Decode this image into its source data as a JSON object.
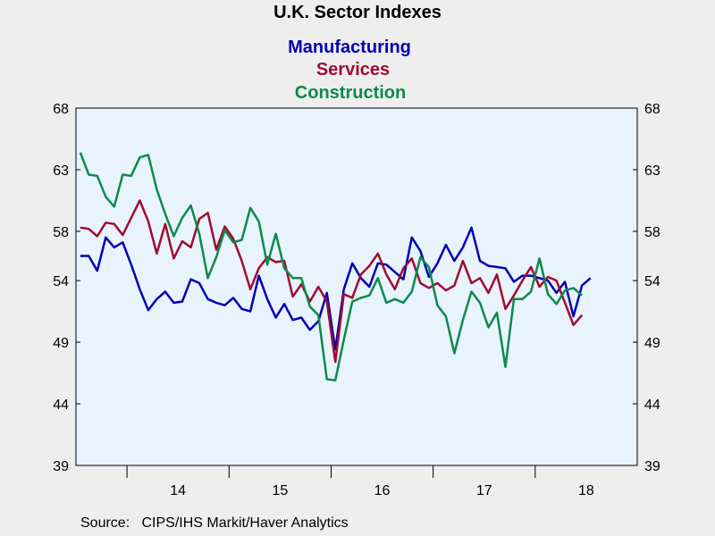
{
  "chart_data": {
    "type": "line",
    "title": "U.K. Sector Indexes",
    "xlabel": "",
    "ylabel": "",
    "ylim": [
      39,
      68
    ],
    "yticks": [
      39,
      44,
      49,
      54,
      58,
      63,
      68
    ],
    "xlim": [
      2013.5,
      2019.0
    ],
    "xticks": [
      "14",
      "15",
      "16",
      "17",
      "18"
    ],
    "legend": "top-center",
    "grid": false,
    "series": [
      {
        "name": "Manufacturing",
        "color": "#0000b3",
        "values": [
          56.0,
          56.0,
          54.8,
          57.5,
          56.7,
          57.1,
          55.3,
          53.3,
          51.6,
          52.5,
          53.1,
          52.2,
          52.3,
          54.1,
          53.8,
          52.5,
          52.2,
          52.0,
          52.6,
          51.7,
          51.5,
          54.4,
          52.5,
          51.0,
          52.1,
          50.8,
          51.0,
          50.0,
          50.7,
          53.0,
          48.4,
          53.3,
          55.4,
          54.2,
          53.5,
          55.4,
          55.3,
          54.7,
          54.1,
          57.5,
          56.4,
          54.3,
          55.4,
          56.9,
          55.6,
          56.7,
          58.3,
          55.6,
          55.2,
          55.1,
          55.0,
          53.9,
          54.4,
          54.4,
          54.2,
          54.0,
          53.0,
          53.9,
          51.1,
          53.6,
          54.2
        ]
      },
      {
        "name": "Services",
        "color": "#a00c30",
        "values": [
          58.3,
          58.2,
          57.6,
          58.7,
          58.6,
          57.7,
          59.1,
          60.5,
          58.8,
          56.2,
          58.6,
          55.8,
          57.2,
          56.7,
          59.0,
          59.5,
          56.5,
          58.4,
          57.4,
          55.6,
          53.3,
          55.0,
          55.9,
          55.5,
          55.6,
          52.7,
          53.7,
          52.3,
          53.5,
          52.3,
          47.4,
          52.9,
          52.6,
          54.5,
          55.2,
          56.2,
          54.5,
          53.3,
          55.0,
          55.8,
          53.8,
          53.4,
          53.8,
          53.2,
          53.6,
          55.6,
          53.8,
          54.2,
          53.0,
          54.5,
          51.7,
          52.8,
          54.0,
          55.1,
          53.5,
          54.3,
          54.0,
          52.2,
          50.4,
          51.2
        ]
      },
      {
        "name": "Construction",
        "color": "#0d8a4a",
        "values": [
          64.4,
          62.6,
          62.5,
          60.8,
          60.0,
          62.6,
          62.5,
          64.0,
          64.2,
          61.4,
          59.4,
          57.6,
          59.1,
          60.1,
          57.8,
          54.2,
          55.9,
          58.1,
          57.1,
          57.3,
          59.9,
          58.8,
          55.3,
          57.8,
          55.0,
          54.2,
          54.2,
          51.9,
          51.2,
          46.0,
          45.9,
          49.2,
          52.3,
          52.6,
          52.8,
          54.2,
          52.2,
          52.5,
          52.2,
          53.1,
          55.9,
          55.1,
          52.0,
          51.1,
          48.1,
          50.8,
          53.1,
          52.2,
          50.2,
          51.4,
          47.0,
          52.5,
          52.5,
          53.1,
          55.8,
          52.9,
          52.1,
          53.2,
          53.4,
          52.8
        ]
      }
    ],
    "source": "Source:   CIPS/IHS Markit/Haver Analytics"
  }
}
